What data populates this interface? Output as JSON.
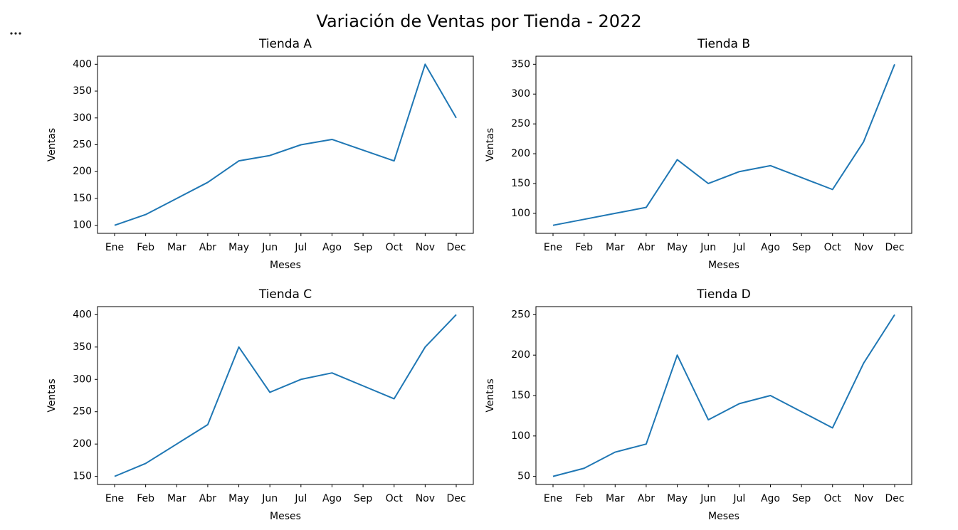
{
  "title": "Variación de Ventas por Tienda - 2022",
  "chart_data": [
    {
      "type": "line",
      "title": "Tienda A",
      "xlabel": "Meses",
      "ylabel": "Ventas",
      "categories": [
        "Ene",
        "Feb",
        "Mar",
        "Abr",
        "May",
        "Jun",
        "Jul",
        "Ago",
        "Sep",
        "Oct",
        "Nov",
        "Dec"
      ],
      "values": [
        100,
        120,
        150,
        180,
        220,
        230,
        250,
        260,
        240,
        220,
        400,
        300
      ],
      "color": "#1f77b4",
      "ylim": [
        85,
        415
      ],
      "yticks": [
        100,
        150,
        200,
        250,
        300,
        350,
        400
      ]
    },
    {
      "type": "line",
      "title": "Tienda B",
      "xlabel": "Meses",
      "ylabel": "Ventas",
      "categories": [
        "Ene",
        "Feb",
        "Mar",
        "Abr",
        "May",
        "Jun",
        "Jul",
        "Ago",
        "Sep",
        "Oct",
        "Nov",
        "Dec"
      ],
      "values": [
        80,
        90,
        100,
        110,
        190,
        150,
        170,
        180,
        160,
        140,
        220,
        350
      ],
      "color": "#1f77b4",
      "ylim": [
        66.5,
        363.5
      ],
      "yticks": [
        100,
        150,
        200,
        250,
        300,
        350
      ]
    },
    {
      "type": "line",
      "title": "Tienda C",
      "xlabel": "Meses",
      "ylabel": "Ventas",
      "categories": [
        "Ene",
        "Feb",
        "Mar",
        "Abr",
        "May",
        "Jun",
        "Jul",
        "Ago",
        "Sep",
        "Oct",
        "Nov",
        "Dec"
      ],
      "values": [
        150,
        170,
        200,
        230,
        350,
        280,
        300,
        310,
        290,
        270,
        350,
        400
      ],
      "color": "#1f77b4",
      "ylim": [
        137.5,
        412.5
      ],
      "yticks": [
        150,
        200,
        250,
        300,
        350,
        400
      ]
    },
    {
      "type": "line",
      "title": "Tienda D",
      "xlabel": "Meses",
      "ylabel": "Ventas",
      "categories": [
        "Ene",
        "Feb",
        "Mar",
        "Abr",
        "May",
        "Jun",
        "Jul",
        "Ago",
        "Sep",
        "Oct",
        "Nov",
        "Dec"
      ],
      "values": [
        50,
        60,
        80,
        90,
        200,
        120,
        140,
        150,
        130,
        110,
        190,
        250
      ],
      "color": "#1f77b4",
      "ylim": [
        40,
        260
      ],
      "yticks": [
        50,
        100,
        150,
        200,
        250
      ]
    }
  ]
}
